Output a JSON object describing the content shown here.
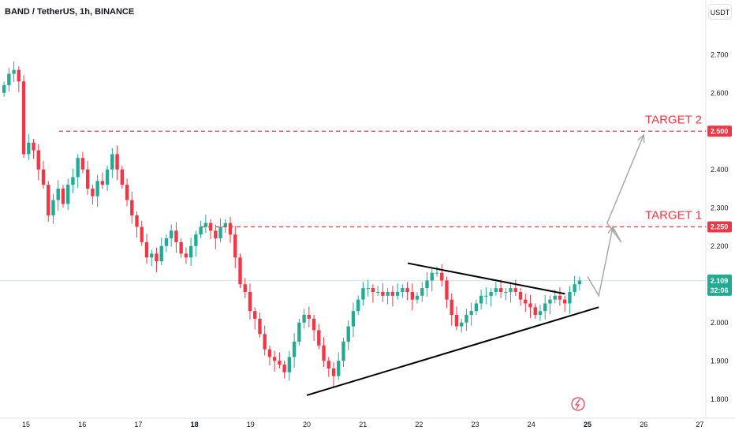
{
  "header": {
    "title": "BAND / TetherUS, 1h, BINANCE",
    "currency": "USDT"
  },
  "chart_data": {
    "type": "candlestick",
    "ylim": [
      1.75,
      2.75
    ],
    "y_ticks": [
      1.8,
      1.9,
      2.0,
      2.1,
      2.2,
      2.3,
      2.4,
      2.5,
      2.6,
      2.7
    ],
    "y_tick_labels": [
      "1.800",
      "1.900",
      "2.000",
      "2.100",
      "2.200",
      "2.300",
      "2.400",
      "2.500",
      "2.600",
      "2.700"
    ],
    "x_ticks": [
      15,
      16,
      17,
      18,
      19,
      20,
      21,
      22,
      23,
      24,
      25,
      26,
      27
    ],
    "x_tick_labels": [
      "15",
      "16",
      "17",
      "18",
      "19",
      "20",
      "21",
      "22",
      "23",
      "24",
      "25",
      "26",
      "27"
    ],
    "x_range": [
      14.96,
      27.4
    ],
    "candles_close": [
      2.62,
      2.65,
      2.66,
      2.63,
      2.44,
      2.47,
      2.45,
      2.4,
      2.36,
      2.28,
      2.32,
      2.35,
      2.31,
      2.36,
      2.38,
      2.43,
      2.4,
      2.35,
      2.33,
      2.37,
      2.36,
      2.4,
      2.44,
      2.4,
      2.36,
      2.32,
      2.28,
      2.25,
      2.21,
      2.17,
      2.18,
      2.16,
      2.2,
      2.22,
      2.24,
      2.21,
      2.18,
      2.17,
      2.2,
      2.23,
      2.25,
      2.26,
      2.24,
      2.22,
      2.25,
      2.26,
      2.23,
      2.17,
      2.1,
      2.08,
      2.03,
      2.01,
      1.97,
      1.93,
      1.91,
      1.9,
      1.89,
      1.87,
      1.91,
      1.95,
      2.0,
      2.02,
      2.01,
      1.98,
      1.94,
      1.9,
      1.88,
      1.86,
      1.9,
      1.95,
      1.99,
      2.03,
      2.06,
      2.09,
      2.09,
      2.08,
      2.08,
      2.07,
      2.08,
      2.07,
      2.08,
      2.09,
      2.08,
      2.06,
      2.07,
      2.09,
      2.11,
      2.13,
      2.13,
      2.11,
      2.06,
      2.02,
      1.99,
      2.0,
      2.02,
      2.03,
      2.05,
      2.07,
      2.07,
      2.08,
      2.09,
      2.08,
      2.08,
      2.09,
      2.08,
      2.06,
      2.05,
      2.04,
      2.02,
      2.03,
      2.05,
      2.06,
      2.07,
      2.06,
      2.05,
      2.08,
      2.1,
      2.11
    ],
    "last_price": {
      "value": "2.109",
      "countdown": "32:06",
      "color": "#22ab94"
    },
    "price_line": 2.109,
    "targets": [
      {
        "label": "TARGET 1",
        "price": 2.25,
        "price_label": "2.250"
      },
      {
        "label": "TARGET 2",
        "price": 2.5,
        "price_label": "2.500"
      }
    ],
    "triangle": {
      "upper": {
        "x": [
          21.8,
          24.6
        ],
        "y": [
          2.155,
          2.075
        ]
      },
      "lower": {
        "x": [
          20.0,
          25.2
        ],
        "y": [
          1.81,
          2.04
        ]
      }
    },
    "projection": {
      "x": [
        25.0,
        25.2,
        25.45,
        25.6,
        25.35,
        26.0
      ],
      "y": [
        2.12,
        2.07,
        2.25,
        2.21,
        2.26,
        2.49
      ]
    },
    "colors": {
      "up": "#22ab94",
      "down": "#f23645",
      "target": "#f23645",
      "axis_text": "#131722",
      "arrow": "#a8a8a8"
    }
  }
}
